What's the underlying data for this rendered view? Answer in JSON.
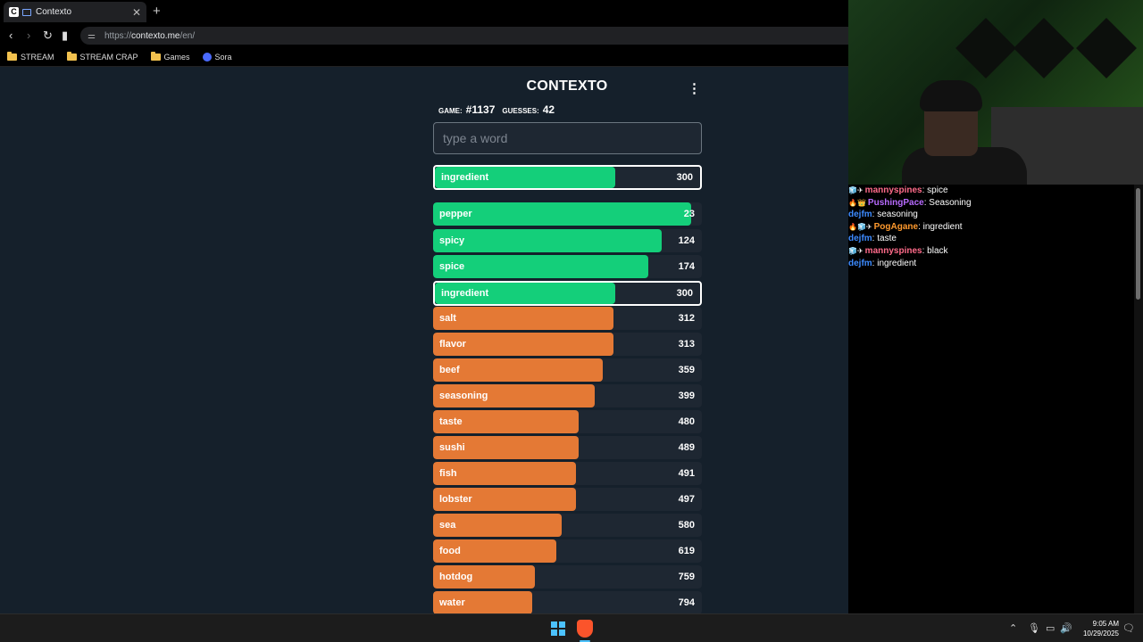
{
  "browser": {
    "tab_icon": "C",
    "tab_title": "Contexto",
    "url_scheme": "https://",
    "url_host": "contexto.me",
    "url_path": "/en/",
    "bookmarks": [
      "STREAM",
      "STREAM CRAP",
      "Games",
      "Sora"
    ]
  },
  "game": {
    "logo": "CONTEXTO",
    "game_label": "GAME:",
    "game_number": "#1137",
    "guesses_label": "GUESSES:",
    "guesses_count": "42",
    "input_placeholder": "type a word",
    "last_guess": {
      "word": "ingredient",
      "distance": "300",
      "fill_pct": 68,
      "color": "#14cf7a"
    },
    "guesses": [
      {
        "word": "pepper",
        "distance": "23",
        "fill_pct": 96,
        "color": "#14cf7a"
      },
      {
        "word": "spicy",
        "distance": "124",
        "fill_pct": 85,
        "color": "#14cf7a"
      },
      {
        "word": "spice",
        "distance": "174",
        "fill_pct": 80,
        "color": "#14cf7a"
      },
      {
        "word": "ingredient",
        "distance": "300",
        "fill_pct": 68,
        "color": "#14cf7a",
        "highlight": true
      },
      {
        "word": "salt",
        "distance": "312",
        "fill_pct": 67,
        "color": "#e47935"
      },
      {
        "word": "flavor",
        "distance": "313",
        "fill_pct": 67,
        "color": "#e47935"
      },
      {
        "word": "beef",
        "distance": "359",
        "fill_pct": 63,
        "color": "#e47935"
      },
      {
        "word": "seasoning",
        "distance": "399",
        "fill_pct": 60,
        "color": "#e47935"
      },
      {
        "word": "taste",
        "distance": "480",
        "fill_pct": 54,
        "color": "#e47935"
      },
      {
        "word": "sushi",
        "distance": "489",
        "fill_pct": 54,
        "color": "#e47935"
      },
      {
        "word": "fish",
        "distance": "491",
        "fill_pct": 53,
        "color": "#e47935"
      },
      {
        "word": "lobster",
        "distance": "497",
        "fill_pct": 53,
        "color": "#e47935"
      },
      {
        "word": "sea",
        "distance": "580",
        "fill_pct": 48,
        "color": "#e47935"
      },
      {
        "word": "food",
        "distance": "619",
        "fill_pct": 46,
        "color": "#e47935"
      },
      {
        "word": "hotdog",
        "distance": "759",
        "fill_pct": 38,
        "color": "#e47935"
      },
      {
        "word": "water",
        "distance": "794",
        "fill_pct": 37,
        "color": "#e47935"
      }
    ]
  },
  "chat": {
    "messages": [
      {
        "badges": "🧊✈",
        "user": "mannyspines",
        "color": "#ff6b8a",
        "text": "spice"
      },
      {
        "badges": "🔥👑",
        "user": "PushingPace",
        "color": "#b86bff",
        "text": "Seasoning"
      },
      {
        "badges": "",
        "user": "dejfm",
        "color": "#3d8bff",
        "text": "seasoning"
      },
      {
        "badges": "🔥🧊✈",
        "user": "PogAgane",
        "color": "#ff9a2e",
        "text": "ingredient"
      },
      {
        "badges": "",
        "user": "dejfm",
        "color": "#3d8bff",
        "text": "taste"
      },
      {
        "badges": "🧊✈",
        "user": "mannyspines",
        "color": "#ff6b8a",
        "text": "black"
      },
      {
        "badges": "",
        "user": "dejfm",
        "color": "#3d8bff",
        "text": "ingredient"
      }
    ]
  },
  "taskbar": {
    "time": "9:05 AM",
    "date": "10/29/2025"
  }
}
